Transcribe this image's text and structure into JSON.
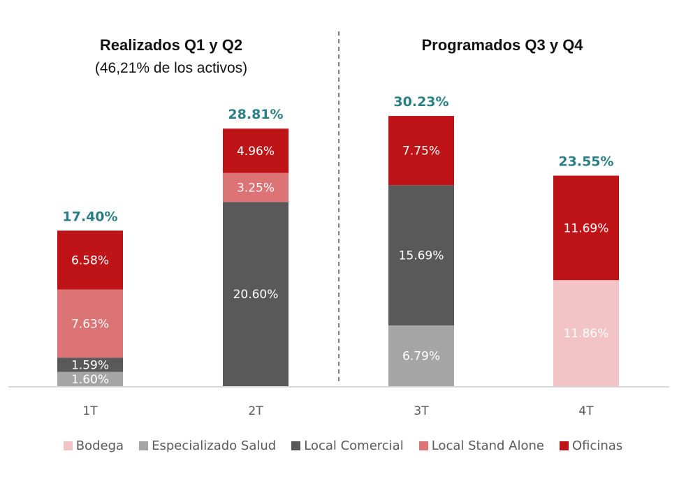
{
  "chart_data": {
    "type": "bar",
    "stacked": true,
    "categories": [
      "1T",
      "2T",
      "3T",
      "4T"
    ],
    "series": [
      {
        "name": "Bodega",
        "color": "#f2c4c6",
        "values": [
          0,
          0,
          0,
          11.86
        ],
        "labels": [
          "",
          "",
          "",
          "11.86%"
        ]
      },
      {
        "name": "Especializado Salud",
        "color": "#a5a5a5",
        "values": [
          1.6,
          0,
          6.79,
          0
        ],
        "labels": [
          "1.60%",
          "",
          "6.79%",
          ""
        ]
      },
      {
        "name": "Local Comercial",
        "color": "#595959",
        "values": [
          1.59,
          20.6,
          15.69,
          0
        ],
        "labels": [
          "1.59%",
          "20.60%",
          "15.69%",
          ""
        ]
      },
      {
        "name": "Local Stand Alone",
        "color": "#dc7475",
        "values": [
          7.63,
          3.25,
          0,
          0
        ],
        "labels": [
          "7.63%",
          "3.25%",
          "",
          ""
        ]
      },
      {
        "name": "Oficinas",
        "color": "#be1418",
        "values": [
          6.58,
          4.96,
          7.75,
          11.69
        ],
        "labels": [
          "6.58%",
          "4.96%",
          "7.75%",
          "11.69%"
        ]
      }
    ],
    "totals": [
      17.4,
      28.81,
      30.23,
      23.55
    ],
    "total_labels": [
      "17.40%",
      "28.81%",
      "30.23%",
      "23.55%"
    ],
    "total_label_color": "#2a7f86",
    "ylim": [
      0,
      31
    ],
    "grid": false,
    "legend_position": "bottom",
    "groups": [
      {
        "title": "Realizados Q1 y Q2",
        "subtitle": "(46,21% de los activos)",
        "categories": [
          "1T",
          "2T"
        ]
      },
      {
        "title": "Programados Q3 y Q4",
        "subtitle": "",
        "categories": [
          "3T",
          "4T"
        ]
      }
    ],
    "xlabel": "",
    "ylabel": ""
  }
}
